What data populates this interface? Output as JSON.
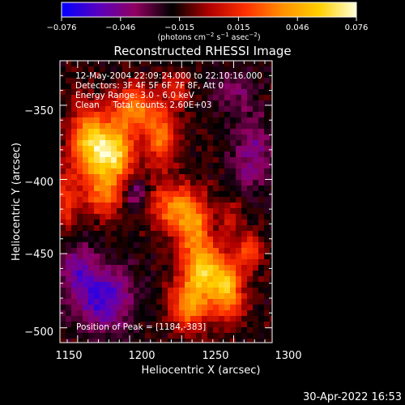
{
  "colorbar": {
    "tick_labels": [
      "−0.076",
      "−0.046",
      "−0.015",
      "0.015",
      "0.046",
      "0.076"
    ],
    "unit_base": "(photons cm",
    "unit_exp1": "−2",
    "unit_mid": " s",
    "unit_exp2": "−1",
    "unit_end": " asec",
    "unit_exp3": "−2",
    "unit_close": ")",
    "stops": [
      "#0000ff",
      "#5a00c0",
      "#900060",
      "#000000",
      "#b00000",
      "#ff3000",
      "#ff9000",
      "#ffd000",
      "#ffffd8"
    ]
  },
  "chart_data": {
    "type": "heatmap",
    "title": "Reconstructed RHESSI Image",
    "xlabel": "Heliocentric X (arcsec)",
    "ylabel": "Heliocentric Y (arcsec)",
    "x_ticks": [
      "1150",
      "1200",
      "1250",
      "1300"
    ],
    "y_ticks": [
      "−350",
      "−400",
      "−450",
      "−500"
    ],
    "xlim": [
      1133,
      1337
    ],
    "ylim": [
      -510,
      -320
    ],
    "value_range": [
      -0.076,
      0.076
    ],
    "colormap": "rainbow",
    "annotations": [
      "12-May-2004 22:09:24.000 to 22:10:16.000",
      "Detectors: 3F 4F 5F 6F 7F 8F, Att 0",
      "Energy Range: 3.0 - 6.0 keV",
      "Clean     Total counts: 2.60E+03"
    ],
    "peak_label": "Position of Peak = [1184,-383]",
    "peak": [
      1184,
      -383
    ],
    "sources": [
      {
        "x": 1184,
        "y": -383,
        "peak": 0.076,
        "sx": 14,
        "sy": 14
      },
      {
        "x": 1160,
        "y": -375,
        "peak": 0.058,
        "sx": 13,
        "sy": 17
      },
      {
        "x": 1205,
        "y": -352,
        "peak": 0.05,
        "sx": 15,
        "sy": 11
      },
      {
        "x": 1175,
        "y": -412,
        "peak": 0.04,
        "sx": 12,
        "sy": 10
      },
      {
        "x": 1230,
        "y": -372,
        "peak": 0.046,
        "sx": 10,
        "sy": 13
      },
      {
        "x": 1240,
        "y": -418,
        "peak": 0.045,
        "sx": 15,
        "sy": 11
      },
      {
        "x": 1262,
        "y": -432,
        "peak": 0.05,
        "sx": 12,
        "sy": 14
      },
      {
        "x": 1272,
        "y": -462,
        "peak": 0.068,
        "sx": 14,
        "sy": 12
      },
      {
        "x": 1257,
        "y": -485,
        "peak": 0.052,
        "sx": 13,
        "sy": 11
      },
      {
        "x": 1295,
        "y": -475,
        "peak": 0.058,
        "sx": 10,
        "sy": 14
      },
      {
        "x": 1315,
        "y": -448,
        "peak": 0.038,
        "sx": 8,
        "sy": 9
      },
      {
        "x": 1298,
        "y": -425,
        "peak": 0.02,
        "sx": 8,
        "sy": 8
      },
      {
        "x": 1140,
        "y": -415,
        "peak": 0.032,
        "sx": 7,
        "sy": 15
      },
      {
        "x": 1245,
        "y": -340,
        "peak": 0.03,
        "sx": 8,
        "sy": 8
      }
    ],
    "negative_regions": [
      {
        "x": 1175,
        "y": -480,
        "peak": -0.045,
        "sx": 20,
        "sy": 16
      },
      {
        "x": 1205,
        "y": -410,
        "peak": -0.03,
        "sx": 8,
        "sy": 8
      },
      {
        "x": 1318,
        "y": -383,
        "peak": -0.03,
        "sx": 14,
        "sy": 18
      },
      {
        "x": 1150,
        "y": -460,
        "peak": -0.03,
        "sx": 12,
        "sy": 12
      },
      {
        "x": 1300,
        "y": -340,
        "peak": -0.022,
        "sx": 14,
        "sy": 10
      }
    ],
    "background": -0.016
  },
  "footer": {
    "datetime": "30-Apr-2022 16:53"
  }
}
